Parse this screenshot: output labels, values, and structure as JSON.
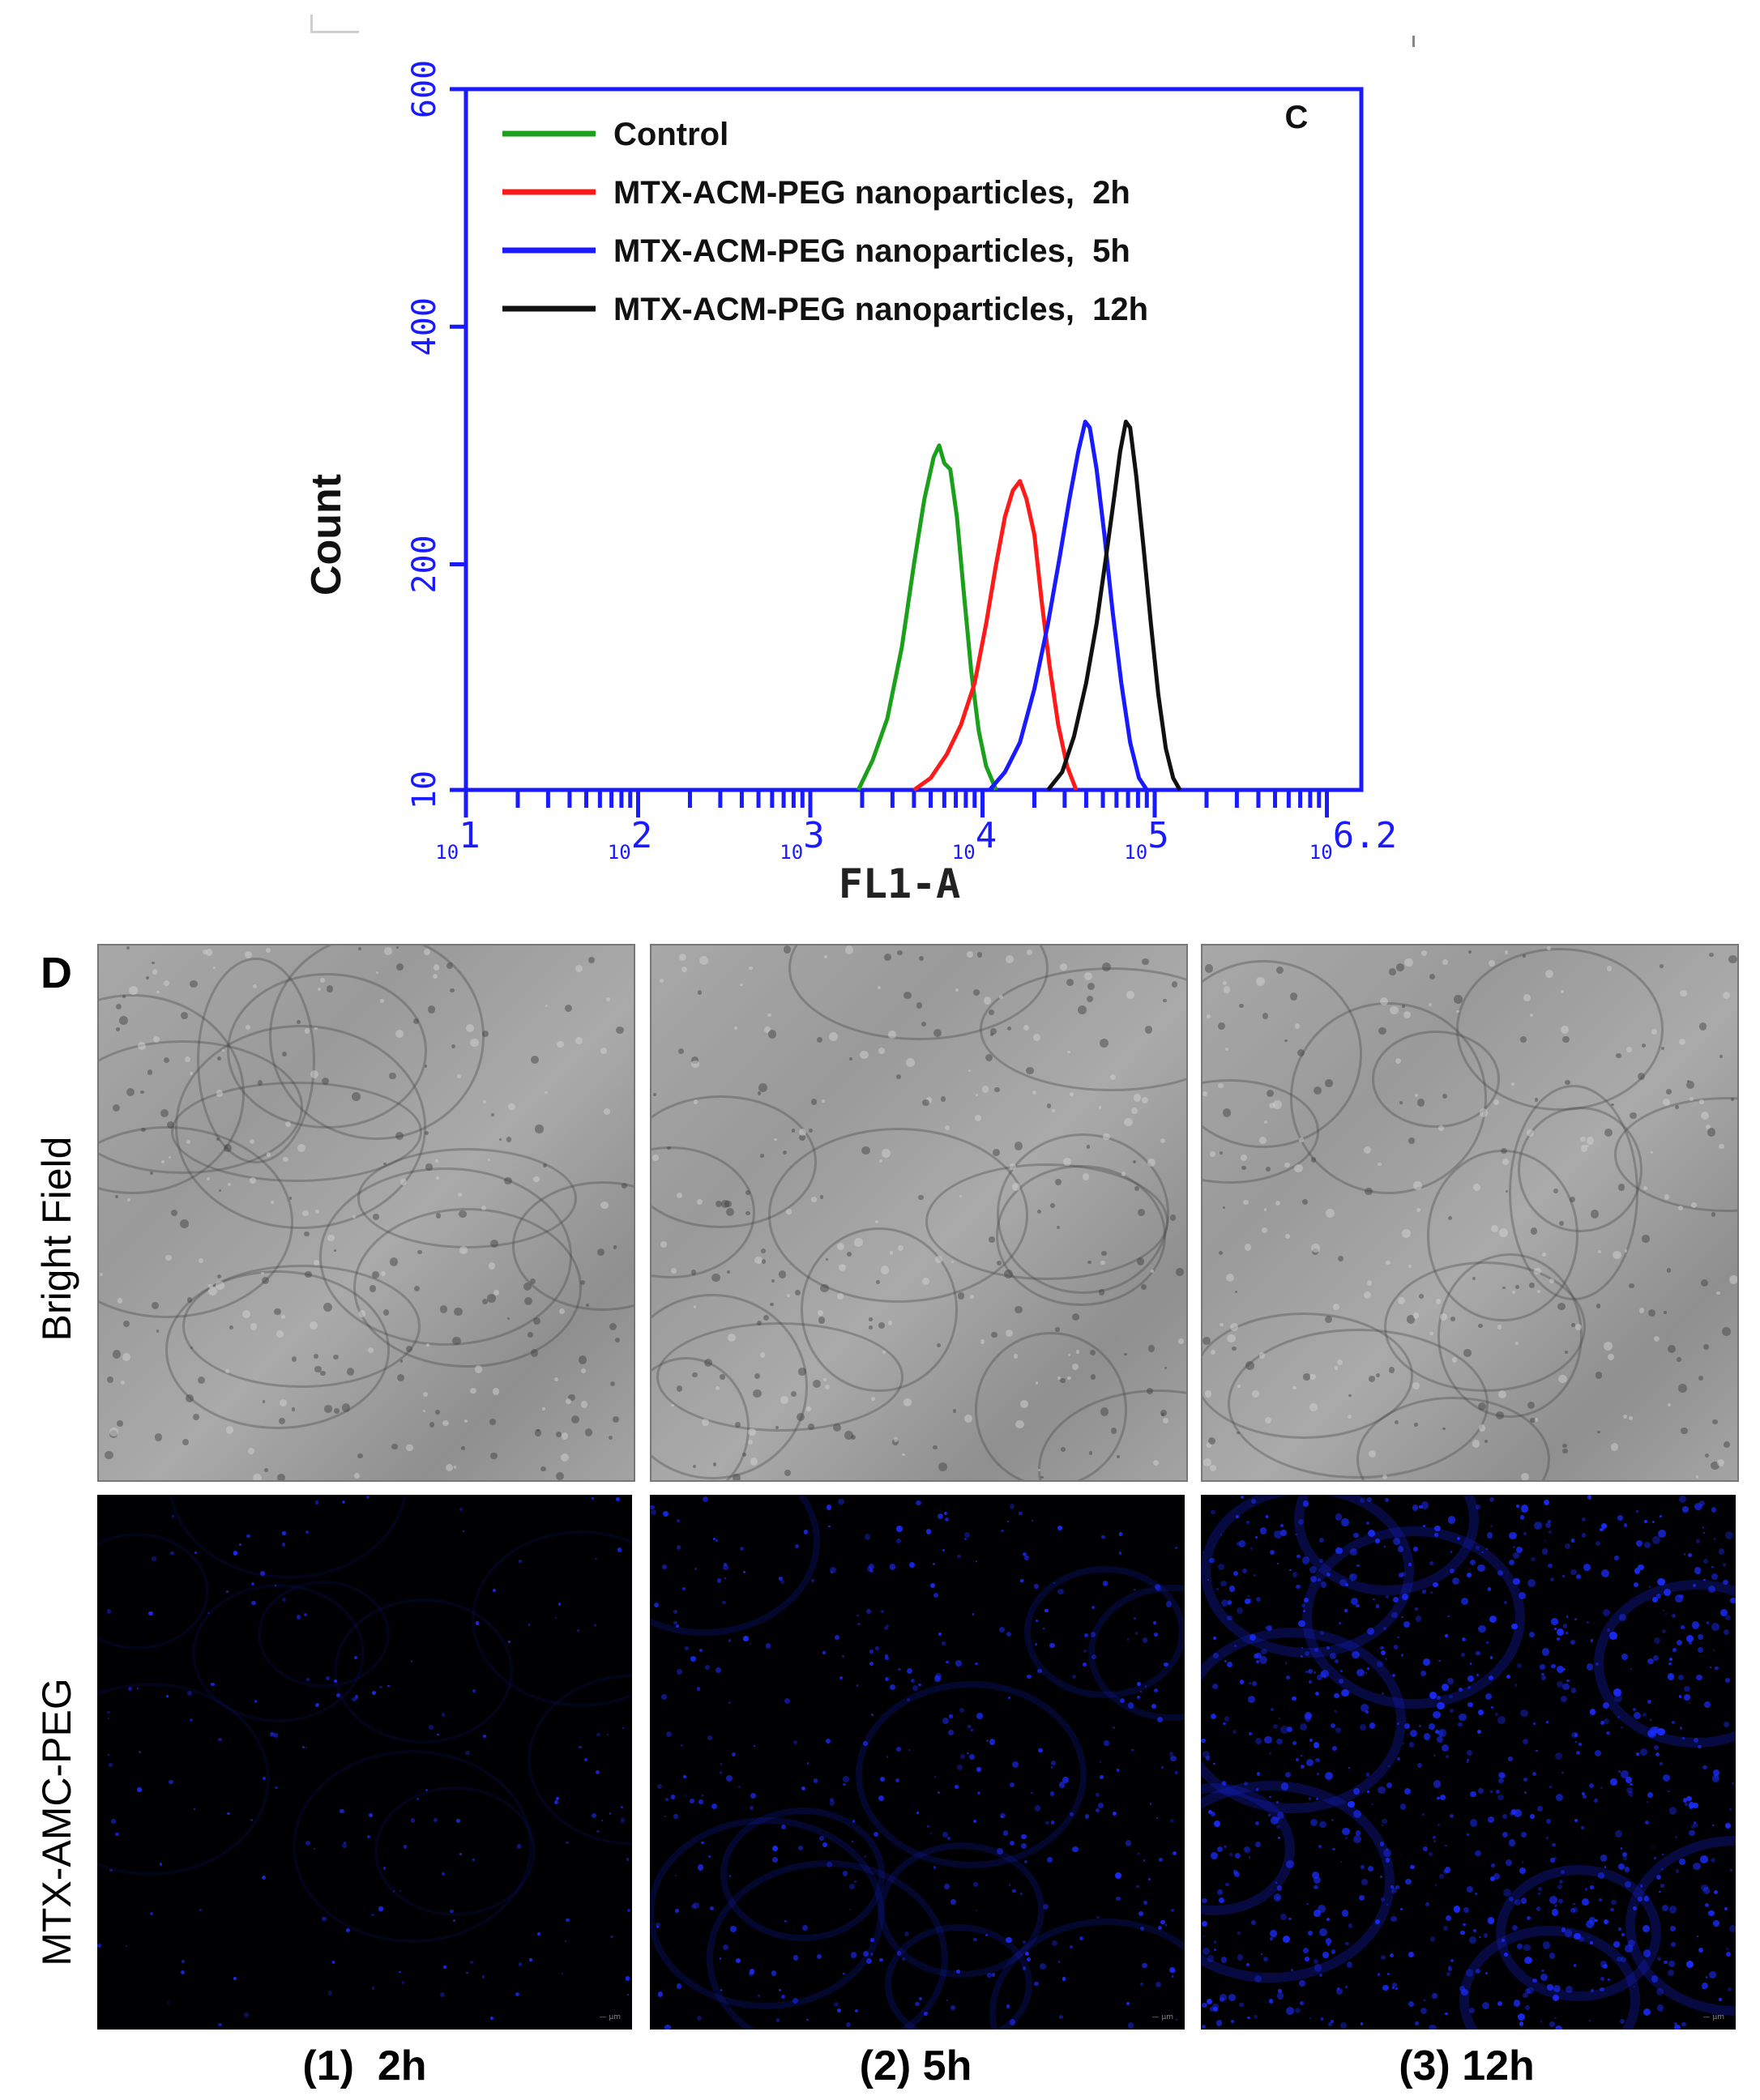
{
  "panel_c": {
    "letter": "C",
    "chart_data": {
      "type": "line",
      "xlabel": "FL1-A",
      "ylabel": "Count",
      "x_scale": "log",
      "xlim": [
        10,
        1584893
      ],
      "ylim": [
        10,
        600
      ],
      "x_ticks": [
        {
          "base": "10",
          "exp": "1",
          "value": 10
        },
        {
          "base": "10",
          "exp": "2",
          "value": 100
        },
        {
          "base": "10",
          "exp": "3",
          "value": 1000
        },
        {
          "base": "10",
          "exp": "4",
          "value": 10000
        },
        {
          "base": "10",
          "exp": "5",
          "value": 100000
        },
        {
          "base": "10",
          "exp": "6.2",
          "value": 1584893
        }
      ],
      "y_ticks": [
        "10",
        "200",
        "400",
        "600"
      ],
      "y_tick_values": [
        10,
        200,
        400,
        600
      ],
      "legend_position": "top-left",
      "series": [
        {
          "name": "Control",
          "color": "#1aa01a",
          "points": [
            [
              1900,
              10
            ],
            [
              2300,
              35
            ],
            [
              2800,
              70
            ],
            [
              3400,
              130
            ],
            [
              4000,
              200
            ],
            [
              4600,
              255
            ],
            [
              5200,
              290
            ],
            [
              5600,
              300
            ],
            [
              6000,
              285
            ],
            [
              6500,
              280
            ],
            [
              7100,
              240
            ],
            [
              7800,
              175
            ],
            [
              8600,
              110
            ],
            [
              9500,
              60
            ],
            [
              10500,
              30
            ],
            [
              12000,
              10
            ]
          ]
        },
        {
          "name": "MTX-ACM-PEG nanoparticles,  2h",
          "color": "#ff1a1a",
          "points": [
            [
              4000,
              10
            ],
            [
              5000,
              20
            ],
            [
              6200,
              40
            ],
            [
              7500,
              65
            ],
            [
              9000,
              100
            ],
            [
              10500,
              150
            ],
            [
              12000,
              200
            ],
            [
              13500,
              240
            ],
            [
              15000,
              262
            ],
            [
              16500,
              270
            ],
            [
              18000,
              255
            ],
            [
              20000,
              225
            ],
            [
              22000,
              170
            ],
            [
              24500,
              115
            ],
            [
              27500,
              65
            ],
            [
              31000,
              30
            ],
            [
              35000,
              10
            ]
          ]
        },
        {
          "name": "MTX-ACM-PEG nanoparticles,  5h",
          "color": "#1a1aff",
          "points": [
            [
              11000,
              10
            ],
            [
              13500,
              25
            ],
            [
              16500,
              50
            ],
            [
              20000,
              95
            ],
            [
              24000,
              150
            ],
            [
              28000,
              205
            ],
            [
              32000,
              255
            ],
            [
              36000,
              295
            ],
            [
              39500,
              320
            ],
            [
              42000,
              315
            ],
            [
              46000,
              280
            ],
            [
              51000,
              225
            ],
            [
              57000,
              160
            ],
            [
              64000,
              100
            ],
            [
              72000,
              50
            ],
            [
              81000,
              20
            ],
            [
              90000,
              10
            ]
          ]
        },
        {
          "name": "MTX-ACM-PEG nanoparticles,  12h",
          "color": "#111111",
          "points": [
            [
              24000,
              10
            ],
            [
              29000,
              25
            ],
            [
              34000,
              55
            ],
            [
              40000,
              100
            ],
            [
              46000,
              150
            ],
            [
              52000,
              205
            ],
            [
              58000,
              255
            ],
            [
              63000,
              295
            ],
            [
              68000,
              320
            ],
            [
              72000,
              315
            ],
            [
              78000,
              275
            ],
            [
              86000,
              215
            ],
            [
              95000,
              150
            ],
            [
              105000,
              90
            ],
            [
              116000,
              45
            ],
            [
              128000,
              20
            ],
            [
              140000,
              10
            ]
          ]
        }
      ]
    }
  },
  "panel_d": {
    "letter": "D",
    "row_labels": [
      "Bright Field",
      "MTX-AMC-PEG"
    ],
    "col_labels": [
      "(1)  2h",
      "(2) 5h",
      "(3) 12h"
    ],
    "fluorescence_color": "#1a2cff"
  }
}
